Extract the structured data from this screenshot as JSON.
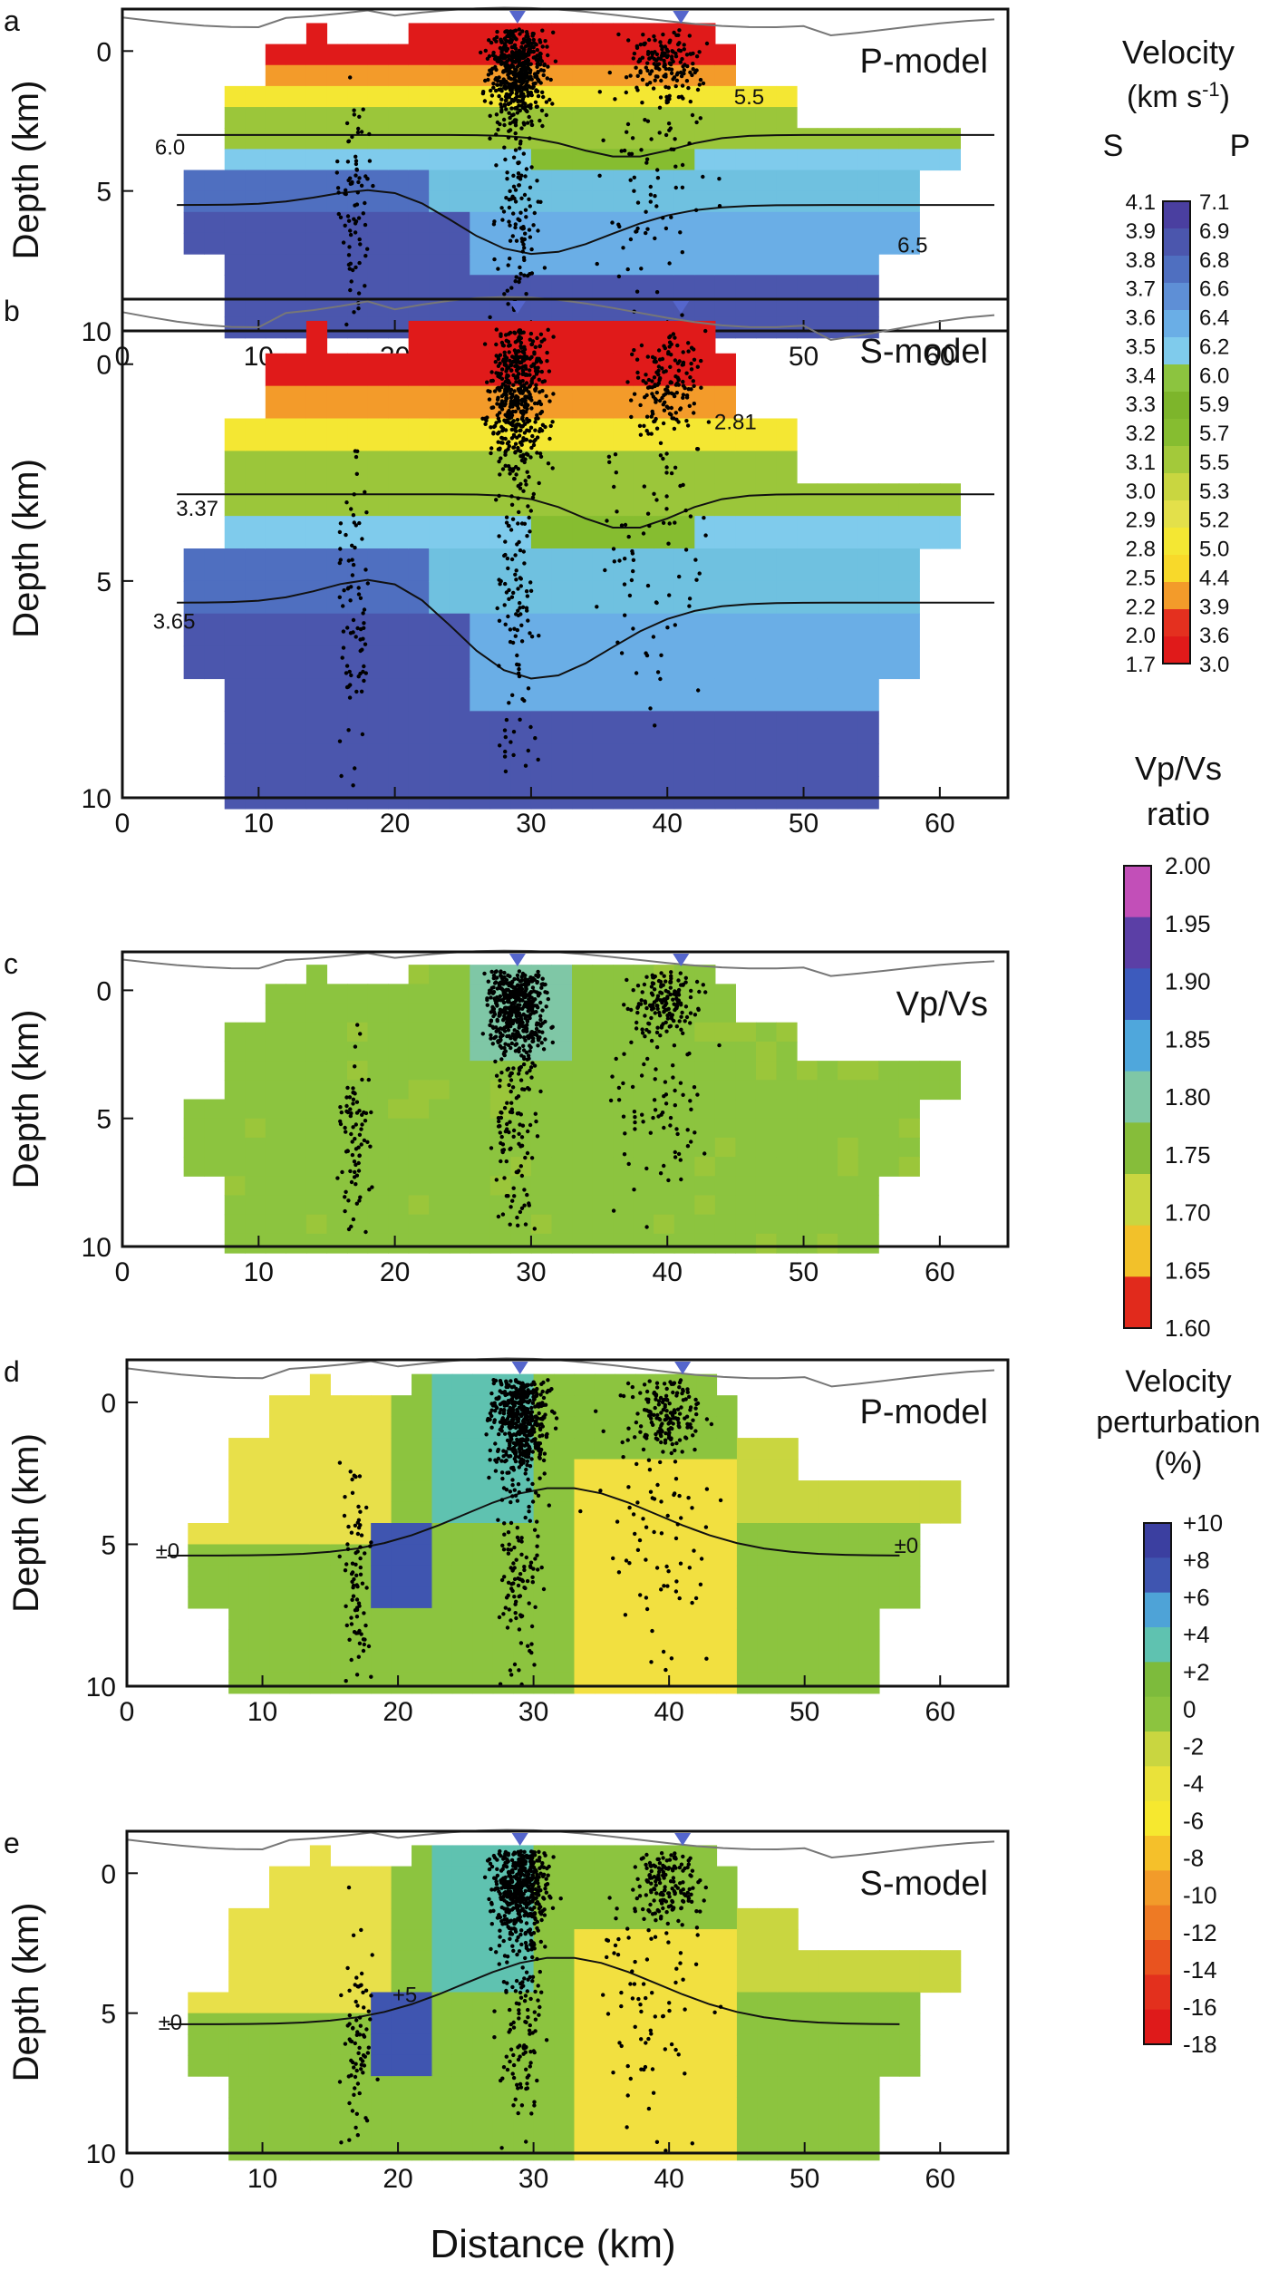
{
  "figure": {
    "xlabel": "Distance (km)",
    "ylabel": "Depth (km)"
  },
  "chart_data": [
    {
      "panel": "a",
      "type": "heatmap",
      "model_label": "P-model",
      "xlabel": "Distance (km)",
      "ylabel": "Depth (km)",
      "xlim": [
        0,
        65
      ],
      "ylim": [
        10,
        -1.5
      ],
      "xticks": [
        0,
        10,
        20,
        30,
        40,
        50,
        60
      ],
      "yticks": [
        0,
        5,
        10
      ],
      "colorbar": "velocity",
      "contour_labels": [
        {
          "text": "6.0",
          "x": 3.5,
          "y": 3.7
        },
        {
          "text": "5.5",
          "x": 46,
          "y": 1.9
        },
        {
          "text": "6.5",
          "x": 58,
          "y": 7.2
        }
      ]
    },
    {
      "panel": "b",
      "type": "heatmap",
      "model_label": "S-model",
      "xlabel": "Distance (km)",
      "ylabel": "Depth (km)",
      "xlim": [
        0,
        65
      ],
      "ylim": [
        10,
        -1.5
      ],
      "xticks": [
        0,
        10,
        20,
        30,
        40,
        50,
        60
      ],
      "yticks": [
        0,
        5,
        10
      ],
      "colorbar": "velocity",
      "contour_labels": [
        {
          "text": "2.81",
          "x": 45,
          "y": 1.5
        },
        {
          "text": "3.37",
          "x": 5.5,
          "y": 3.5
        },
        {
          "text": "3.65",
          "x": 3.8,
          "y": 6.1
        }
      ]
    },
    {
      "panel": "c",
      "type": "heatmap",
      "model_label": "Vp/Vs",
      "xlabel": "Distance (km)",
      "ylabel": "Depth (km)",
      "xlim": [
        0,
        65
      ],
      "ylim": [
        10,
        -1.5
      ],
      "xticks": [
        0,
        10,
        20,
        30,
        40,
        50,
        60
      ],
      "yticks": [
        0,
        5,
        10
      ],
      "colorbar": "vpvs",
      "contour_labels": []
    },
    {
      "panel": "d",
      "type": "heatmap",
      "model_label": "P-model",
      "xlabel": "Distance (km)",
      "ylabel": "Depth (km)",
      "xlim": [
        0,
        65
      ],
      "ylim": [
        10,
        -1.5
      ],
      "xticks": [
        0,
        10,
        20,
        30,
        40,
        50,
        60
      ],
      "yticks": [
        0,
        5,
        10
      ],
      "colorbar": "perturbation",
      "contour_labels": [
        {
          "text": "±0",
          "x": 3.0,
          "y": 5.5
        },
        {
          "text": "±0",
          "x": 57.5,
          "y": 5.3
        }
      ]
    },
    {
      "panel": "e",
      "type": "heatmap",
      "model_label": "S-model",
      "xlabel": "Distance (km)",
      "ylabel": "Depth (km)",
      "xlim": [
        0,
        65
      ],
      "ylim": [
        10,
        -1.5
      ],
      "xticks": [
        0,
        10,
        20,
        30,
        40,
        50,
        60
      ],
      "yticks": [
        0,
        5,
        10
      ],
      "colorbar": "perturbation",
      "contour_labels": [
        {
          "text": "±0",
          "x": 3.2,
          "y": 5.6
        },
        {
          "text": "+5",
          "x": 20.5,
          "y": 4.6
        }
      ]
    }
  ],
  "colorbars": {
    "velocity": {
      "title_line1": "Velocity",
      "title_line2": "(km s",
      "title_sup": "-1",
      "title_line2_end": ")",
      "col_s": "S",
      "col_p": "P",
      "s_values": [
        "4.1",
        "3.9",
        "3.8",
        "3.7",
        "3.6",
        "3.5",
        "3.4",
        "3.3",
        "3.2",
        "3.1",
        "3.0",
        "2.9",
        "2.8",
        "2.5",
        "2.2",
        "2.0",
        "1.7"
      ],
      "p_values": [
        "7.1",
        "6.9",
        "6.8",
        "6.6",
        "6.4",
        "6.2",
        "6.0",
        "5.9",
        "5.7",
        "5.5",
        "5.3",
        "5.2",
        "5.0",
        "4.4",
        "3.9",
        "3.6",
        "3.0"
      ],
      "colors": [
        "#4a3fa0",
        "#4b56ad",
        "#4f6fc0",
        "#5e8fd6",
        "#6aaee6",
        "#7fcbec",
        "#8cc43f",
        "#7db52b",
        "#86bd30",
        "#a3c93a",
        "#c9d640",
        "#e3e04a",
        "#f4e733",
        "#f8d92a",
        "#f39b2a",
        "#e4301f",
        "#e01a1a"
      ]
    },
    "vpvs": {
      "title_line1": "Vp/Vs",
      "title_line2": "ratio",
      "ticks": [
        "2.00",
        "1.95",
        "1.90",
        "1.85",
        "1.80",
        "1.75",
        "1.70",
        "1.65",
        "1.60"
      ],
      "colors": [
        "#c24fb8",
        "#5b3fa6",
        "#3d5bbd",
        "#4fa7dc",
        "#7fc7a6",
        "#86bd3a",
        "#c9d640",
        "#f2c12a",
        "#e12a1c"
      ]
    },
    "perturbation": {
      "title_line1": "Velocity",
      "title_line2": "perturbation",
      "title_line3": "(%)",
      "ticks": [
        "+10",
        "+8",
        "+6",
        "+4",
        "+2",
        "0",
        "-2",
        "-4",
        "-6",
        "-8",
        "-10",
        "-12",
        "-14",
        "-16",
        "-18"
      ],
      "colors": [
        "#3b3fa0",
        "#3f55b0",
        "#4ea3d7",
        "#5fc2b0",
        "#7dbb3c",
        "#8cc43f",
        "#c9d640",
        "#eae23a",
        "#f6e82f",
        "#f5c02a",
        "#f29b2a",
        "#ee7a24",
        "#e9531f",
        "#e3301d",
        "#df1a1a"
      ]
    }
  }
}
